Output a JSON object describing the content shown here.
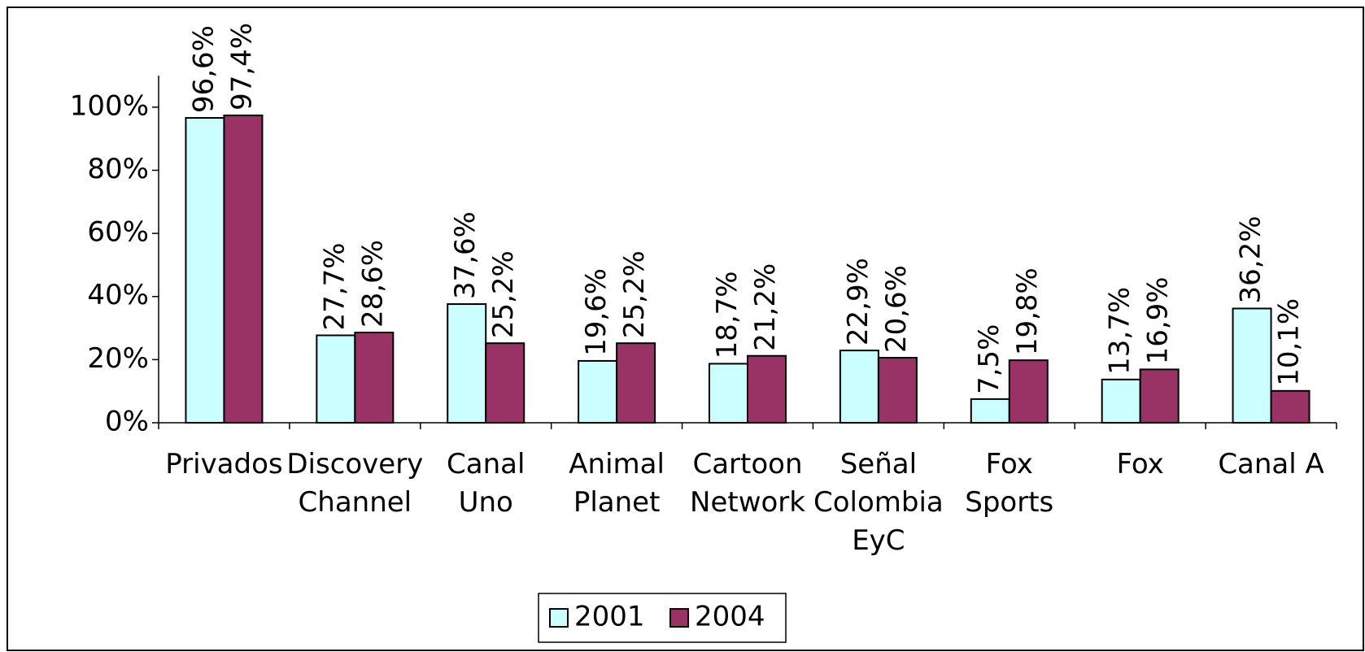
{
  "chart_data": {
    "type": "bar",
    "categories": [
      "Privados",
      "Discovery\nChannel",
      "Canal\nUno",
      "Animal\nPlanet",
      "Cartoon\nNetwork",
      "Señal\nColombia\nEyC",
      "Fox\nSports",
      "Fox",
      "Canal A"
    ],
    "series": [
      {
        "name": "2001",
        "color": "#ccffff",
        "values": [
          96.6,
          27.7,
          37.6,
          19.6,
          18.7,
          22.9,
          7.5,
          13.7,
          36.2
        ],
        "value_labels": [
          "96,6%",
          "27,7%",
          "37,6%",
          "19,6%",
          "18,7%",
          "22,9%",
          "7,5%",
          "13,7%",
          "36,2%"
        ]
      },
      {
        "name": "2004",
        "color": "#993366",
        "values": [
          97.4,
          28.6,
          25.2,
          25.2,
          21.2,
          20.6,
          19.8,
          16.9,
          10.1
        ],
        "value_labels": [
          "97,4%",
          "28,6%",
          "25,2%",
          "25,2%",
          "21,2%",
          "20,6%",
          "19,8%",
          "16,9%",
          "10,1%"
        ]
      }
    ],
    "ylim": [
      0,
      110
    ],
    "yticks": [
      {
        "value": 0,
        "label": "0%"
      },
      {
        "value": 20,
        "label": "20%"
      },
      {
        "value": 40,
        "label": "40%"
      },
      {
        "value": 60,
        "label": "60%"
      },
      {
        "value": 80,
        "label": "80%"
      },
      {
        "value": 100,
        "label": "100%"
      }
    ],
    "legend": "bottom"
  }
}
